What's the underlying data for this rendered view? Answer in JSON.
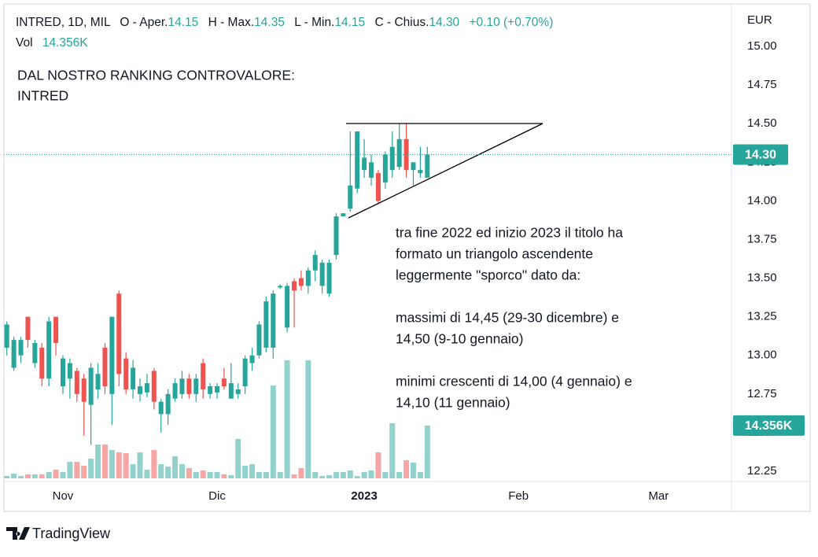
{
  "chart_data": {
    "type": "candlestick",
    "header": {
      "symbol": "INTRED, 1D, MIL",
      "ohlc": [
        {
          "name": "O - Aper.",
          "value": "14.15"
        },
        {
          "name": "H - Max.",
          "value": "14.35"
        },
        {
          "name": "L - Min.",
          "value": "14.15"
        },
        {
          "name": "C - Chius.",
          "value": "14.30"
        }
      ],
      "change": "+0.10 (+0.70%)",
      "volume_name": "Vol",
      "volume": "14.356K"
    },
    "note_title": [
      "DAL NOSTRO RANKING CONTROVALORE:",
      "INTRED"
    ],
    "note_text": [
      "tra fine 2022 ed inizio 2023 il titolo ha",
      "formato un triangolo ascendente",
      "leggermente \"sporco\" dato da:",
      "massimi di 14,45 (29-30 dicembre) e",
      "14,50 (9-10 gennaio)",
      "minimi crescenti di 14,00 (4 gennaio) e",
      "14,10 (11 gennaio)"
    ],
    "y_unit": "EUR",
    "footer": "TradingView",
    "up_color": "#26a69a",
    "down_color": "#ef5350",
    "up_volume_color": "#93d2cc",
    "down_volume_color": "#f5a6a5",
    "last_close_label": "14.30",
    "last_volume_label": "14.356K",
    "ylim": [
      12.194,
      15.26
    ],
    "yticks": [
      {
        "value": 12.25,
        "label": "12.25"
      },
      {
        "value": 12.5,
        "label": "12.50"
      },
      {
        "value": 12.75,
        "label": "12.75"
      },
      {
        "value": 13,
        "label": "13.00"
      },
      {
        "value": 13.25,
        "label": "13.25"
      },
      {
        "value": 13.5,
        "label": "13.50"
      },
      {
        "value": 13.75,
        "label": "13.75"
      },
      {
        "value": 14,
        "label": "14.00"
      },
      {
        "value": 14.25,
        "label": "14.25"
      },
      {
        "value": 14.5,
        "label": "14.50"
      },
      {
        "value": 14.75,
        "label": "14.75"
      },
      {
        "value": 15,
        "label": "15.00"
      }
    ],
    "categories": [
      null,
      null,
      null,
      null,
      null,
      null,
      null,
      null,
      "Nov",
      null,
      null,
      null,
      null,
      null,
      null,
      null,
      null,
      null,
      null,
      null,
      null,
      null,
      null,
      null,
      null,
      null,
      null,
      null,
      null,
      null,
      "Dic",
      null,
      null,
      null,
      null,
      null,
      null,
      null,
      null,
      null,
      null,
      null,
      null,
      null,
      null,
      null,
      null,
      null,
      null,
      null,
      null,
      "2023",
      null,
      null,
      null,
      null,
      null,
      null,
      null,
      null,
      null,
      null,
      null,
      null,
      null,
      null,
      null,
      null,
      null,
      null,
      null,
      null,
      null,
      "Feb",
      null,
      null,
      null,
      null,
      null,
      null,
      null,
      null,
      null,
      null,
      null,
      null,
      null,
      null,
      null,
      null,
      null,
      null,
      null,
      "Mar",
      null,
      null,
      null,
      null,
      null,
      null,
      null,
      null,
      null,
      null
    ],
    "open": [
      13.05,
      12.92,
      13.0,
      13.25,
      12.95,
      13.05,
      12.85,
      13.25,
      12.8,
      12.85,
      12.9,
      12.85,
      12.68,
      12.78,
      13.05,
      12.75,
      13.4,
      12.98,
      12.78,
      12.75,
      12.76,
      12.9,
      12.62,
      12.62,
      12.72,
      12.75,
      12.85,
      12.75,
      12.95,
      12.75,
      12.76,
      12.85,
      12.72,
      12.75,
      12.8,
      12.95,
      13.0,
      13.05,
      13.05,
      13.44,
      13.18,
      13.48,
      13.5,
      13.45,
      13.55,
      13.45,
      13.4,
      13.65,
      13.9,
      13.95,
      14.08,
      14.2,
      14.15,
      14.18,
      14.12,
      14.2,
      14.22,
      14.4,
      14.2,
      14.18,
      14.15,
      null,
      null,
      null,
      null,
      null,
      null,
      null,
      null,
      null,
      null,
      null,
      null,
      null,
      null,
      null,
      null,
      null,
      null,
      null,
      null,
      null,
      null,
      null,
      null,
      null,
      null,
      null,
      null,
      null,
      null,
      null,
      null,
      null,
      null,
      null,
      null,
      null,
      null,
      null,
      null,
      null,
      null,
      null
    ],
    "high": [
      13.22,
      13.12,
      13.12,
      13.25,
      13.1,
      13.08,
      13.25,
      13.25,
      13.0,
      12.98,
      12.92,
      12.88,
      12.95,
      12.95,
      13.08,
      13.25,
      13.42,
      13.02,
      12.97,
      12.85,
      12.88,
      12.92,
      12.72,
      12.78,
      12.85,
      12.9,
      12.88,
      12.88,
      12.98,
      12.82,
      12.82,
      12.92,
      12.95,
      12.82,
      13.0,
      13.05,
      13.22,
      13.38,
      13.42,
      13.46,
      13.47,
      13.5,
      13.55,
      13.57,
      13.68,
      13.62,
      13.62,
      13.92,
      13.92,
      14.45,
      14.45,
      14.4,
      14.3,
      14.2,
      14.32,
      14.45,
      14.5,
      14.5,
      14.25,
      14.35,
      14.35,
      null,
      null,
      null,
      null,
      null,
      null,
      null,
      null,
      null,
      null,
      null,
      null,
      null,
      null,
      null,
      null,
      null,
      null,
      null,
      null,
      null,
      null,
      null,
      null,
      null,
      null,
      null,
      null,
      null,
      null,
      null,
      null,
      null,
      null,
      null,
      null,
      null,
      null,
      null,
      null,
      null,
      null,
      null
    ],
    "low": [
      13.0,
      12.9,
      12.95,
      13.05,
      12.92,
      12.8,
      12.8,
      13.0,
      12.75,
      12.72,
      12.7,
      12.48,
      12.42,
      12.72,
      12.75,
      12.55,
      12.8,
      12.75,
      12.72,
      12.7,
      12.73,
      12.65,
      12.5,
      12.55,
      12.7,
      12.72,
      12.72,
      12.7,
      12.72,
      12.72,
      12.72,
      12.78,
      12.72,
      12.72,
      12.75,
      12.9,
      12.98,
      13.02,
      12.98,
      13.43,
      13.15,
      13.18,
      13.42,
      13.4,
      13.48,
      13.4,
      13.38,
      13.62,
      13.9,
      13.93,
      14.05,
      14.15,
      14.1,
      13.98,
      14.08,
      14.15,
      14.2,
      14.15,
      14.1,
      14.15,
      14.15,
      null,
      null,
      null,
      null,
      null,
      null,
      null,
      null,
      null,
      null,
      null,
      null,
      null,
      null,
      null,
      null,
      null,
      null,
      null,
      null,
      null,
      null,
      null,
      null,
      null,
      null,
      null,
      null,
      null,
      null,
      null,
      null,
      null,
      null,
      null,
      null,
      null,
      null,
      null,
      null,
      null,
      null,
      null
    ],
    "close": [
      13.2,
      13.1,
      13.1,
      13.1,
      13.08,
      12.85,
      13.22,
      13.08,
      12.98,
      12.95,
      12.75,
      12.7,
      12.92,
      12.88,
      12.8,
      13.25,
      12.88,
      12.78,
      12.92,
      12.8,
      12.82,
      12.7,
      12.7,
      12.75,
      12.82,
      12.85,
      12.75,
      12.85,
      12.78,
      12.8,
      12.8,
      12.8,
      12.82,
      12.78,
      12.98,
      13.0,
      13.2,
      13.35,
      13.4,
      13.45,
      13.45,
      13.42,
      13.45,
      13.55,
      13.65,
      13.6,
      13.6,
      13.9,
      13.92,
      14.1,
      14.45,
      14.28,
      14.25,
      14.0,
      14.3,
      14.35,
      14.4,
      14.2,
      14.25,
      14.2,
      14.3,
      null,
      null,
      null,
      null,
      null,
      null,
      null,
      null,
      null,
      null,
      null,
      null,
      null,
      null,
      null,
      null,
      null,
      null,
      null,
      null,
      null,
      null,
      null,
      null,
      null,
      null,
      null,
      null,
      null,
      null,
      null,
      null,
      null,
      null,
      null,
      null,
      null,
      null,
      null,
      null,
      null,
      null,
      null
    ],
    "volume": [
      640,
      1280,
      640,
      1070,
      1070,
      1070,
      1710,
      2350,
      1710,
      4490,
      4490,
      3420,
      5350,
      9200,
      9200,
      7700,
      7060,
      6850,
      3850,
      7060,
      2350,
      7700,
      3850,
      3210,
      5990,
      3850,
      2780,
      1710,
      2140,
      1710,
      1710,
      1070,
      860,
      10700,
      3420,
      3850,
      1710,
      1710,
      25250,
      1710,
      32100,
      1070,
      2780,
      32100,
      1710,
      640,
      860,
      1710,
      1710,
      2140,
      640,
      1710,
      2140,
      7060,
      1710,
      14980,
      1710,
      4920,
      4280,
      1710,
      14356,
      null,
      null,
      null,
      null,
      null,
      null,
      null,
      null,
      null,
      null,
      null,
      null,
      null,
      null,
      null,
      null,
      null,
      null,
      null,
      null,
      null,
      null,
      null,
      null,
      null,
      null,
      null,
      null,
      null,
      null,
      null,
      null,
      null,
      null,
      null,
      null,
      null,
      null,
      null,
      null,
      null,
      null,
      null
    ]
  }
}
